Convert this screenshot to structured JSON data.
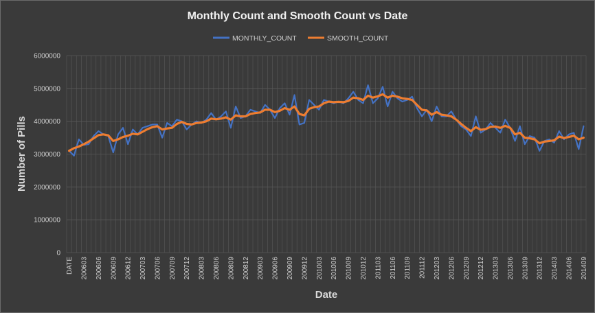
{
  "chart_data": {
    "type": "line",
    "title": "Monthly Count and Smooth Count vs Date",
    "xlabel": "Date",
    "ylabel": "Number of Pills",
    "ylim": [
      0,
      6000000
    ],
    "yticks": [
      0,
      1000000,
      2000000,
      3000000,
      4000000,
      5000000,
      6000000
    ],
    "legend_position": "top-center",
    "grid": true,
    "x_tick_labels": [
      "DATE",
      "200603",
      "200606",
      "200609",
      "200612",
      "200703",
      "200706",
      "200709",
      "200712",
      "200803",
      "200806",
      "200809",
      "200812",
      "200903",
      "200906",
      "200909",
      "200912",
      "201003",
      "201006",
      "201009",
      "201012",
      "201103",
      "201106",
      "201109",
      "201112",
      "201203",
      "201206",
      "201209",
      "201212",
      "201303",
      "201306",
      "201309",
      "201312",
      "201403",
      "201406",
      "201409"
    ],
    "x_tick_every": 3,
    "colors": {
      "background": "#3a3a3a",
      "monthly": "#4472c4",
      "smooth": "#ed7d31",
      "grid": "#595959"
    },
    "series": [
      {
        "name": "MONTHLY_COUNT",
        "values": [
          3100000,
          2950000,
          3450000,
          3280000,
          3300000,
          3550000,
          3700000,
          3600000,
          3550000,
          3050000,
          3600000,
          3800000,
          3300000,
          3750000,
          3600000,
          3800000,
          3850000,
          3900000,
          3900000,
          3500000,
          3950000,
          3850000,
          4050000,
          4000000,
          3750000,
          3900000,
          4000000,
          3950000,
          4050000,
          4250000,
          4050000,
          4150000,
          4300000,
          3800000,
          4450000,
          4100000,
          4150000,
          4350000,
          4300000,
          4250000,
          4500000,
          4350000,
          4100000,
          4400000,
          4550000,
          4200000,
          4800000,
          3900000,
          3950000,
          4650000,
          4500000,
          4350000,
          4650000,
          4600000,
          4550000,
          4600000,
          4550000,
          4700000,
          4900000,
          4650000,
          4550000,
          5100000,
          4550000,
          4700000,
          5050000,
          4450000,
          4900000,
          4700000,
          4600000,
          4650000,
          4750000,
          4400000,
          4150000,
          4350000,
          4000000,
          4450000,
          4150000,
          4150000,
          4300000,
          4050000,
          3850000,
          3750000,
          3550000,
          4150000,
          3650000,
          3750000,
          3950000,
          3800000,
          3650000,
          4050000,
          3800000,
          3400000,
          3850000,
          3300000,
          3550000,
          3500000,
          3100000,
          3400000,
          3450000,
          3350000,
          3700000,
          3450000,
          3600000,
          3650000,
          3150000,
          3850000
        ]
      },
      {
        "name": "SMOOTH_COUNT",
        "values": [
          3100000,
          3180000,
          3230000,
          3300000,
          3380000,
          3480000,
          3580000,
          3600000,
          3570000,
          3400000,
          3450000,
          3520000,
          3560000,
          3620000,
          3600000,
          3680000,
          3760000,
          3820000,
          3850000,
          3750000,
          3780000,
          3800000,
          3920000,
          3980000,
          3920000,
          3900000,
          3950000,
          3960000,
          4000000,
          4080000,
          4060000,
          4080000,
          4120000,
          4050000,
          4180000,
          4150000,
          4150000,
          4220000,
          4250000,
          4270000,
          4350000,
          4350000,
          4280000,
          4320000,
          4400000,
          4350000,
          4450000,
          4220000,
          4180000,
          4380000,
          4430000,
          4450000,
          4550000,
          4600000,
          4580000,
          4590000,
          4580000,
          4620000,
          4720000,
          4700000,
          4650000,
          4780000,
          4720000,
          4760000,
          4820000,
          4720000,
          4780000,
          4750000,
          4700000,
          4680000,
          4650000,
          4500000,
          4350000,
          4330000,
          4200000,
          4280000,
          4200000,
          4180000,
          4150000,
          4050000,
          3920000,
          3800000,
          3700000,
          3820000,
          3740000,
          3760000,
          3830000,
          3840000,
          3800000,
          3860000,
          3800000,
          3600000,
          3650000,
          3500000,
          3480000,
          3450000,
          3330000,
          3380000,
          3400000,
          3420000,
          3530000,
          3490000,
          3520000,
          3560000,
          3450000,
          3500000
        ]
      }
    ]
  }
}
